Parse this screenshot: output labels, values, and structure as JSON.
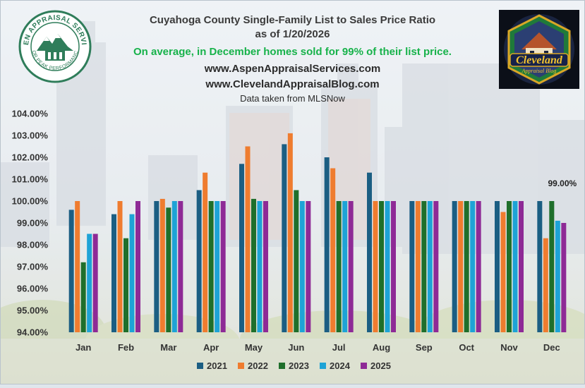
{
  "header": {
    "title": "Cuyahoga County Single-Family List to Sales Price Ratio",
    "subtitle": "as of 1/20/2026",
    "note": "On average, in December homes sold for 99% of their list price.",
    "website_1": "www.AspenAppraisalServices.com",
    "website_2": "www.ClevelandAppraisalBlog.com",
    "source": "Data taken from MLSNow"
  },
  "logos": {
    "left_logo": "Aspen Appraisal Services - For Peak Performance",
    "right_logo": "Cleveland Appraisal Blog"
  },
  "colors": {
    "series": [
      "#1b5e83",
      "#ef7c2f",
      "#1f6f2b",
      "#1ea3d6",
      "#8e2a96"
    ],
    "axis_text": "#333333",
    "note_green": "#17b24a"
  },
  "chart_data": {
    "type": "bar",
    "title": "Cuyahoga County Single-Family List to Sales Price Ratio",
    "categories": [
      "Jan",
      "Feb",
      "Mar",
      "Apr",
      "May",
      "Jun",
      "Jul",
      "Aug",
      "Sep",
      "Oct",
      "Nov",
      "Dec"
    ],
    "series": [
      {
        "name": "2021",
        "values": [
          99.6,
          99.4,
          100.0,
          100.5,
          101.7,
          102.6,
          102.0,
          101.3,
          100.0,
          100.0,
          100.0,
          100.0
        ]
      },
      {
        "name": "2022",
        "values": [
          100.0,
          100.0,
          100.1,
          101.3,
          102.5,
          103.1,
          101.5,
          100.0,
          100.0,
          100.0,
          99.5,
          98.3
        ]
      },
      {
        "name": "2023",
        "values": [
          97.2,
          98.3,
          99.7,
          100.0,
          100.1,
          100.5,
          100.0,
          100.0,
          100.0,
          100.0,
          100.0,
          100.0
        ]
      },
      {
        "name": "2024",
        "values": [
          98.5,
          99.4,
          100.0,
          100.0,
          100.0,
          100.0,
          100.0,
          100.0,
          100.0,
          100.0,
          100.0,
          99.1
        ]
      },
      {
        "name": "2025",
        "values": [
          98.5,
          100.0,
          100.0,
          100.0,
          100.0,
          100.0,
          100.0,
          100.0,
          100.0,
          100.0,
          100.0,
          99.0
        ]
      }
    ],
    "ylim": [
      94,
      104
    ],
    "yticks": [
      "94.00%",
      "95.00%",
      "96.00%",
      "97.00%",
      "98.00%",
      "99.00%",
      "100.00%",
      "101.00%",
      "102.00%",
      "103.00%",
      "104.00%"
    ],
    "data_label": {
      "category": "Dec",
      "series": "2025",
      "text": "99.00%"
    },
    "legend": "bottom",
    "grid": false
  }
}
